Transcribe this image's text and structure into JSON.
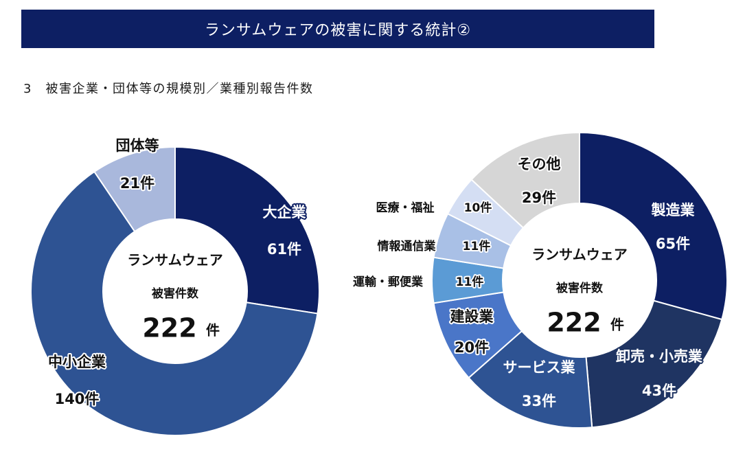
{
  "header": {
    "title": "ランサムウェアの被害に関する統計②"
  },
  "section": {
    "heading": "3　被害企業・団体等の規模別／業種別報告件数"
  },
  "chart_data": [
    {
      "type": "pie",
      "variant": "donut",
      "center_text": {
        "line1": "ランサムウェア",
        "line2": "被害件数",
        "total": "222",
        "unit": "件"
      },
      "slices": [
        {
          "label": "大企業",
          "value": 61,
          "value_text": "61件",
          "color": "#0d1f63"
        },
        {
          "label": "中小企業",
          "value": 140,
          "value_text": "140件",
          "color": "#2e5393"
        },
        {
          "label": "団体等",
          "value": 21,
          "value_text": "21件",
          "color": "#a9b8dc"
        }
      ]
    },
    {
      "type": "pie",
      "variant": "donut",
      "center_text": {
        "line1": "ランサムウェア",
        "line2": "被害件数",
        "total": "222",
        "unit": "件"
      },
      "slices": [
        {
          "label": "製造業",
          "value": 65,
          "value_text": "65件",
          "color": "#0d1f63"
        },
        {
          "label": "卸売・小売業",
          "value": 43,
          "value_text": "43件",
          "color": "#1f3462"
        },
        {
          "label": "サービス業",
          "value": 33,
          "value_text": "33件",
          "color": "#2e5393"
        },
        {
          "label": "建設業",
          "value": 20,
          "value_text": "20件",
          "color": "#4a76c8"
        },
        {
          "label": "運輸・郵便業",
          "value": 11,
          "value_text": "11件",
          "color": "#5b9bd5"
        },
        {
          "label": "情報通信業",
          "value": 11,
          "value_text": "11件",
          "color": "#a9c0e6"
        },
        {
          "label": "医療・福祉",
          "value": 10,
          "value_text": "10件",
          "color": "#d4def3"
        },
        {
          "label": "その他",
          "value": 29,
          "value_text": "29件",
          "color": "#d6d6d6"
        }
      ]
    }
  ]
}
